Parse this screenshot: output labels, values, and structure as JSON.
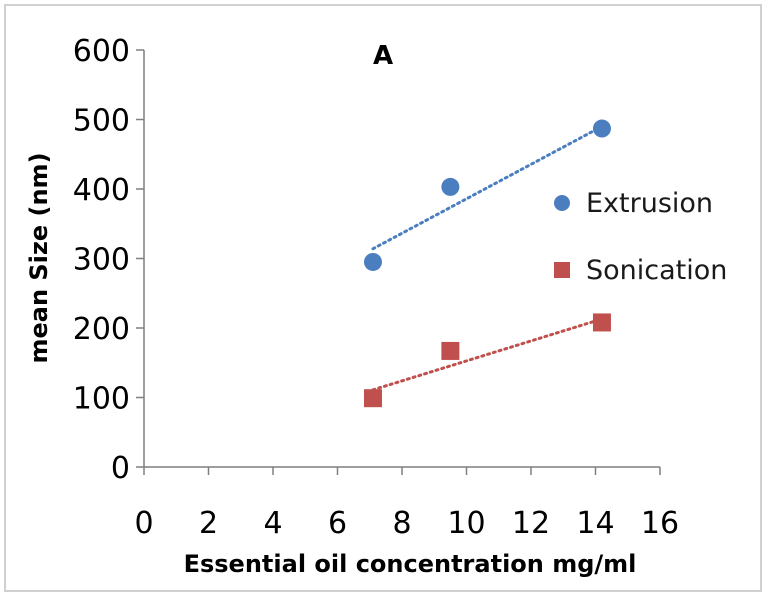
{
  "chart_data": {
    "type": "scatter",
    "title": "A",
    "xlabel": "Essential oil concentration mg/ml",
    "ylabel": "mean Size (nm)",
    "xlim": [
      0,
      16
    ],
    "ylim": [
      0,
      600
    ],
    "xticks": [
      0,
      2,
      4,
      6,
      8,
      10,
      12,
      14,
      16
    ],
    "yticks": [
      0,
      100,
      200,
      300,
      400,
      500,
      600
    ],
    "grid": false,
    "legend_position": "right",
    "series": [
      {
        "name": "Extrusion",
        "marker": "circle",
        "color": "#4a7ebf",
        "x": [
          7.1,
          9.5,
          14.2
        ],
        "y": [
          295,
          403,
          487
        ],
        "trendline": {
          "type": "linear",
          "style": "dotted",
          "from": [
            7.1,
            314
          ],
          "to": [
            14.2,
            490
          ]
        }
      },
      {
        "name": "Sonication",
        "marker": "square",
        "color": "#c0504d",
        "x": [
          7.1,
          9.5,
          14.2
        ],
        "y": [
          99,
          167,
          208
        ],
        "trendline": {
          "type": "linear",
          "style": "dotted",
          "from": [
            7.1,
            111
          ],
          "to": [
            14.2,
            213
          ]
        }
      }
    ]
  }
}
